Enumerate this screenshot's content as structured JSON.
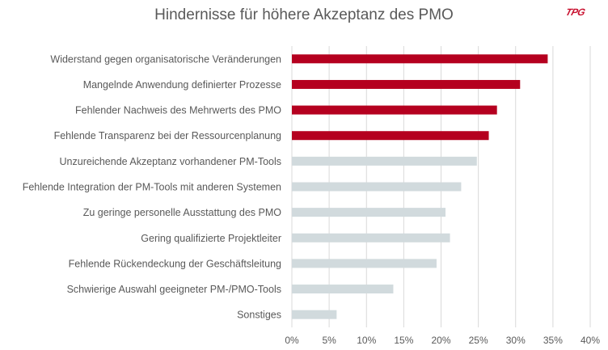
{
  "logo_text": "TPG",
  "chart_data": {
    "type": "bar",
    "orientation": "horizontal",
    "title": "Hindernisse für höhere Akzeptanz des PMO",
    "categories": [
      "Widerstand gegen organisatorische Veränderungen",
      "Mangelnde Anwendung definierter Prozesse",
      "Fehlender Nachweis des Mehrwerts des PMO",
      "Fehlende Transparenz bei der Ressourcenplanung",
      "Unzureichende Akzeptanz vorhandener PM-Tools",
      "Fehlende Integration der PM-Tools mit anderen Systemen",
      "Zu geringe personelle Ausstattung des PMO",
      "Gering qualifizierte Projektleiter",
      "Fehlende Rückendeckung der Geschäftsleitung",
      "Schwierige Auswahl geeigneter PM-/PMO-Tools",
      "Sonstiges"
    ],
    "values": [
      34.3,
      30.6,
      27.5,
      26.4,
      24.8,
      22.7,
      20.6,
      21.2,
      19.4,
      13.6,
      6.0
    ],
    "highlight_colors": [
      "#b5001f",
      "#b5001f",
      "#b5001f",
      "#b5001f",
      "#d1dadd",
      "#d1dadd",
      "#d1dadd",
      "#d1dadd",
      "#d1dadd",
      "#d1dadd",
      "#d1dadd"
    ],
    "xlim": [
      0,
      40
    ],
    "xticks": [
      "0%",
      "5%",
      "10%",
      "15%",
      "20%",
      "25%",
      "30%",
      "35%",
      "40%"
    ],
    "grid": true,
    "xlabel": "",
    "ylabel": ""
  }
}
